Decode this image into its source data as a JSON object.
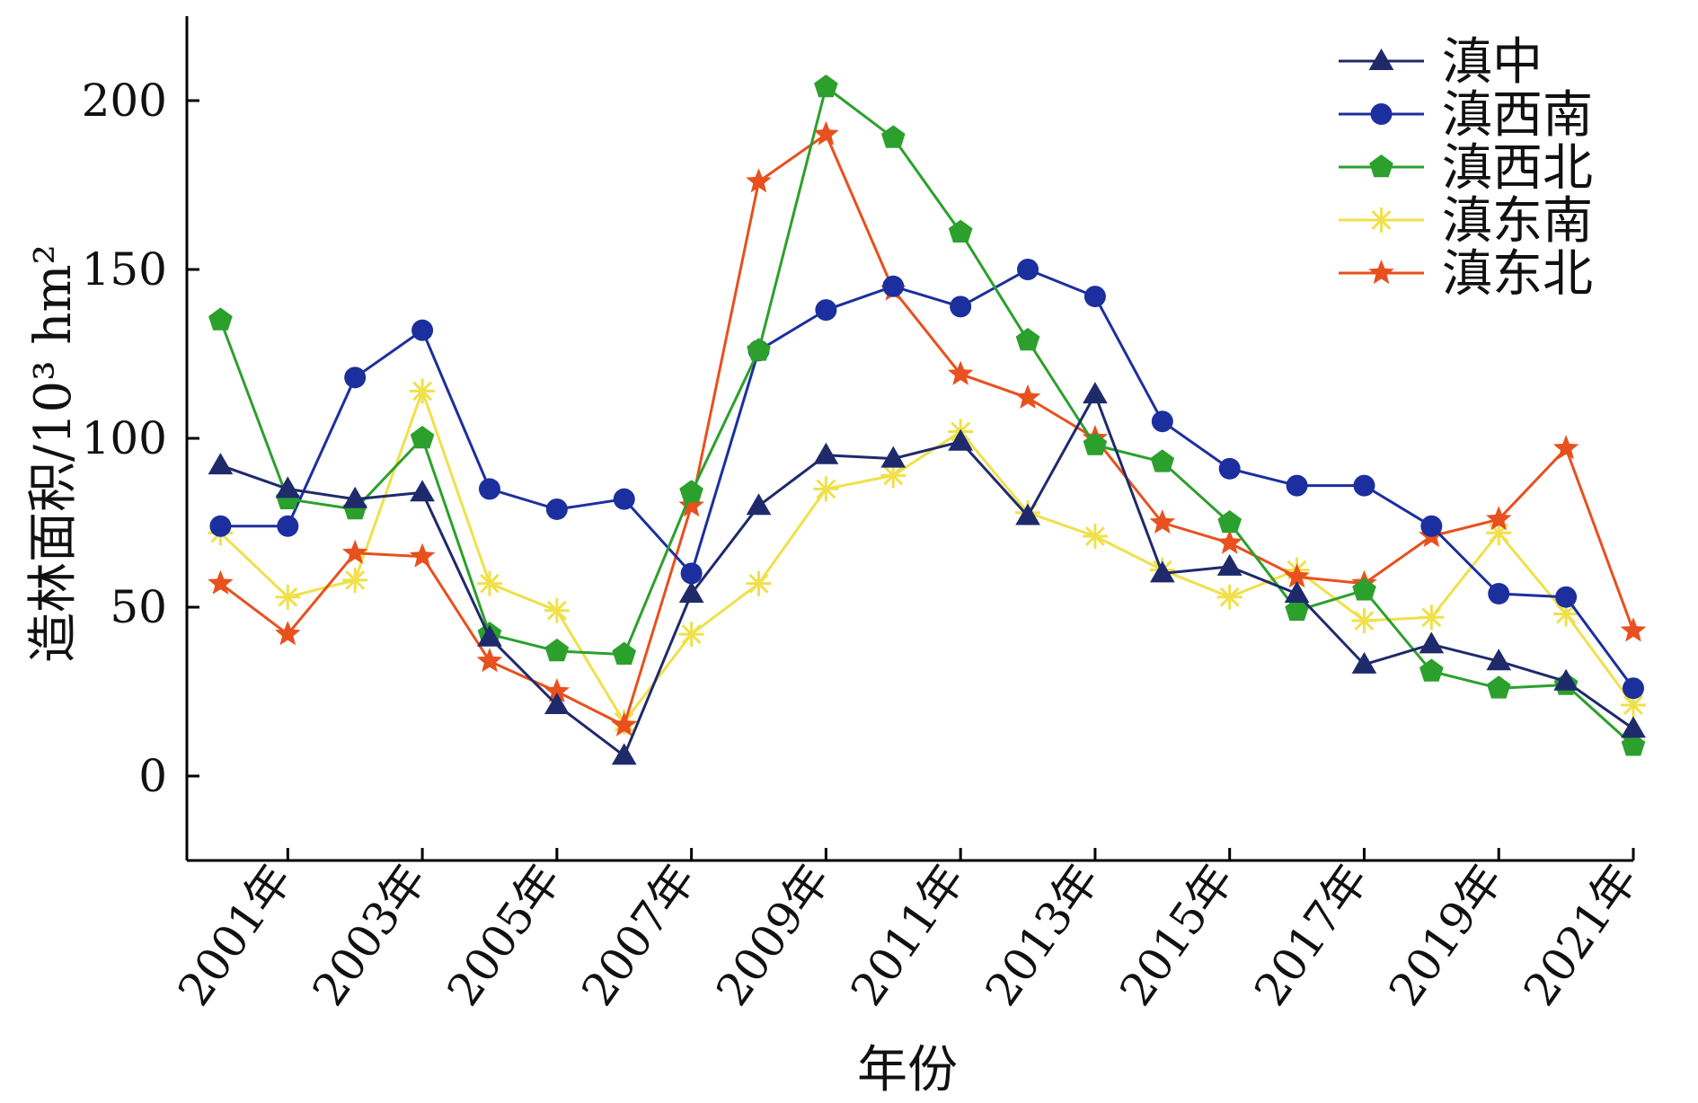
{
  "chart_data": {
    "type": "line",
    "xlabel": "年份",
    "ylabel": "造林面积/10³ hm²",
    "ylim": [
      -25,
      225
    ],
    "yticks": [
      0,
      50,
      100,
      150,
      200
    ],
    "xlim": [
      1999.5,
      2021
    ],
    "x": [
      2000,
      2001,
      2002,
      2003,
      2004,
      2005,
      2006,
      2007,
      2008,
      2009,
      2010,
      2011,
      2012,
      2013,
      2014,
      2015,
      2016,
      2017,
      2018,
      2019,
      2020,
      2021
    ],
    "xticks": [
      "2001年",
      "2003年",
      "2005年",
      "2007年",
      "2009年",
      "2011年",
      "2013年",
      "2015年",
      "2017年",
      "2019年",
      "2021年"
    ],
    "grid": false,
    "legend_position": "top-right",
    "series": [
      {
        "name": "滇中",
        "color": "#1f2a6b",
        "marker": "triangle",
        "values": [
          92,
          85,
          82,
          84,
          41,
          21,
          6,
          54,
          80,
          95,
          94,
          99,
          77,
          113,
          60,
          62,
          54,
          33,
          39,
          34,
          28,
          14
        ]
      },
      {
        "name": "滇西南",
        "color": "#1c2f9e",
        "marker": "circle",
        "values": [
          74,
          74,
          118,
          132,
          85,
          79,
          82,
          60,
          126,
          138,
          145,
          139,
          150,
          142,
          105,
          91,
          86,
          86,
          74,
          54,
          53,
          26
        ]
      },
      {
        "name": "滇西北",
        "color": "#2ca02c",
        "marker": "pentagon",
        "values": [
          135,
          82,
          79,
          100,
          42,
          37,
          36,
          84,
          126,
          204,
          189,
          161,
          129,
          98,
          93,
          75,
          49,
          55,
          31,
          26,
          27,
          9
        ]
      },
      {
        "name": "滇东南",
        "color": "#f0e04a",
        "marker": "asterisk",
        "values": [
          72,
          53,
          58,
          114,
          57,
          49,
          16,
          42,
          57,
          85,
          89,
          102,
          78,
          71,
          61,
          53,
          61,
          46,
          47,
          72,
          48,
          21
        ]
      },
      {
        "name": "滇东北",
        "color": "#e8501e",
        "marker": "star",
        "values": [
          57,
          42,
          66,
          65,
          34,
          25,
          15,
          80,
          176,
          190,
          144,
          119,
          112,
          100,
          75,
          69,
          59,
          57,
          71,
          76,
          97,
          43
        ]
      }
    ]
  }
}
